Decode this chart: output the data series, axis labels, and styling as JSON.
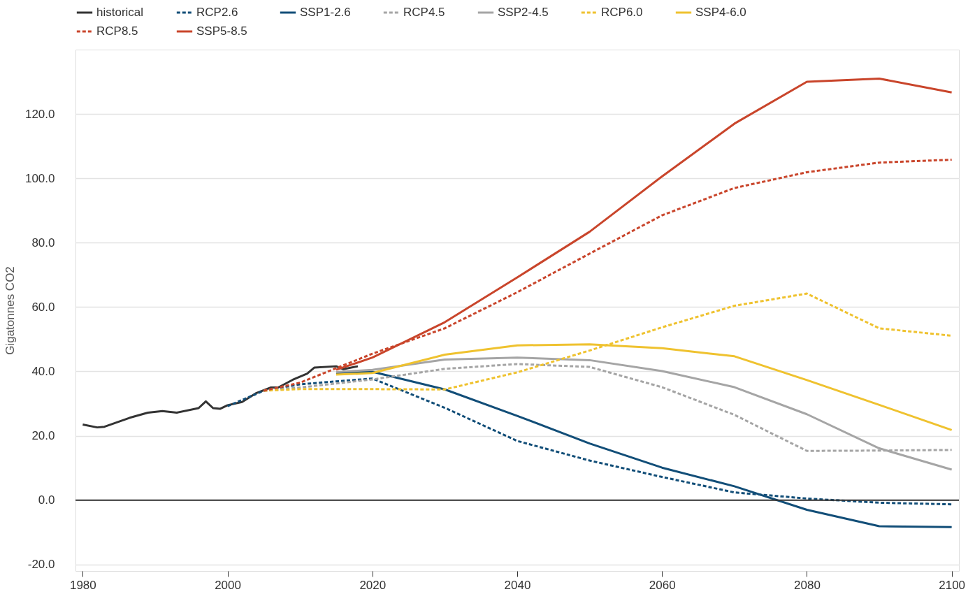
{
  "chart_data": {
    "type": "line",
    "ylabel": "Gigatonnes CO2",
    "xlim": [
      1979,
      2101
    ],
    "xticks": [
      1980,
      2000,
      2020,
      2040,
      2060,
      2080,
      2100
    ],
    "ylim": [
      -22,
      140
    ],
    "yticks": [
      {
        "value": -20,
        "label": "-20.0"
      },
      {
        "value": 0,
        "label": "0.0"
      },
      {
        "value": 20,
        "label": "20.0"
      },
      {
        "value": 40,
        "label": "40.0"
      },
      {
        "value": 60,
        "label": "60.0"
      },
      {
        "value": 80,
        "label": "80.0"
      },
      {
        "value": 100,
        "label": "100.0"
      },
      {
        "value": 120,
        "label": "120.0"
      }
    ],
    "grid": "y",
    "legend": "top",
    "marker": "none",
    "ref_lines": [
      {
        "axis": "y",
        "value": 0,
        "label": null,
        "color": "#333333"
      }
    ],
    "series": [
      {
        "name": "historical",
        "color": "#333333",
        "line_style": "solid",
        "x": [
          1980,
          1982,
          1983,
          1986.5,
          1989,
          1991,
          1993,
          1996,
          1997,
          1998,
          1999,
          2000,
          2002,
          2004,
          2006,
          2007,
          2009,
          2011,
          2012,
          2015,
          2016,
          2018
        ],
        "values": [
          23.5,
          22.6,
          22.8,
          25.6,
          27.2,
          27.7,
          27.2,
          28.6,
          30.7,
          28.6,
          28.4,
          29.5,
          30.5,
          33.3,
          35.0,
          35.0,
          37.4,
          39.3,
          41.2,
          41.6,
          40.7,
          41.6
        ]
      },
      {
        "name": "RCP2.6",
        "color": "#124e78",
        "line_style": "dashed",
        "x": [
          2000,
          2005,
          2010,
          2020,
          2030,
          2040,
          2050,
          2060,
          2070,
          2080,
          2090,
          2100
        ],
        "values": [
          29.2,
          34.0,
          36.0,
          37.8,
          28.7,
          18.4,
          12.3,
          7.2,
          2.4,
          0.5,
          -0.8,
          -1.3
        ]
      },
      {
        "name": "SSP1-2.6",
        "color": "#124e78",
        "line_style": "solid",
        "x": [
          2015,
          2020,
          2030,
          2040,
          2050,
          2060,
          2070,
          2080,
          2090,
          2100
        ],
        "values": [
          39.5,
          39.9,
          34.4,
          26.2,
          17.6,
          10.1,
          4.3,
          -3.0,
          -8.1,
          -8.4
        ]
      },
      {
        "name": "RCP4.5",
        "color": "#a5a5a5",
        "line_style": "dashed",
        "x": [
          2005,
          2010,
          2020,
          2030,
          2040,
          2050,
          2060,
          2070,
          2080,
          2090,
          2100
        ],
        "values": [
          34.0,
          35.0,
          37.5,
          40.8,
          42.3,
          41.4,
          35.1,
          26.5,
          15.3,
          15.4,
          15.6
        ]
      },
      {
        "name": "SSP2-4.5",
        "color": "#a5a5a5",
        "line_style": "solid",
        "x": [
          2015,
          2020,
          2030,
          2040,
          2050,
          2060,
          2070,
          2080,
          2090,
          2100
        ],
        "values": [
          39.8,
          40.5,
          43.7,
          44.3,
          43.5,
          40.1,
          35.1,
          26.7,
          16.1,
          9.5
        ]
      },
      {
        "name": "RCP6.0",
        "color": "#efc22f",
        "line_style": "dashed",
        "x": [
          2005,
          2010,
          2020,
          2030,
          2040,
          2050,
          2060,
          2070,
          2080,
          2090,
          2100
        ],
        "values": [
          34.0,
          34.5,
          34.5,
          34.4,
          39.7,
          46.5,
          53.7,
          60.4,
          64.2,
          53.4,
          51.1
        ]
      },
      {
        "name": "SSP4-6.0",
        "color": "#efc22f",
        "line_style": "solid",
        "x": [
          2015,
          2020,
          2030,
          2040,
          2050,
          2060,
          2070,
          2080,
          2090,
          2100
        ],
        "values": [
          39.0,
          39.5,
          45.2,
          48.1,
          48.4,
          47.2,
          44.7,
          37.3,
          29.6,
          21.8
        ]
      },
      {
        "name": "RCP8.5",
        "color": "#c9452b",
        "line_style": "dashed",
        "x": [
          2005,
          2010,
          2020,
          2030,
          2040,
          2050,
          2060,
          2070,
          2080,
          2090,
          2100
        ],
        "values": [
          34.0,
          36.5,
          45.5,
          53.4,
          64.6,
          76.6,
          88.5,
          97.0,
          101.9,
          104.9,
          105.8
        ]
      },
      {
        "name": "SSP5-8.5",
        "color": "#c9452b",
        "line_style": "solid",
        "x": [
          2015,
          2020,
          2030,
          2040,
          2050,
          2060,
          2070,
          2080,
          2090,
          2100
        ],
        "values": [
          40.5,
          44.3,
          55.3,
          69.2,
          83.4,
          100.6,
          117.0,
          130.0,
          131.0,
          126.7
        ]
      }
    ]
  }
}
